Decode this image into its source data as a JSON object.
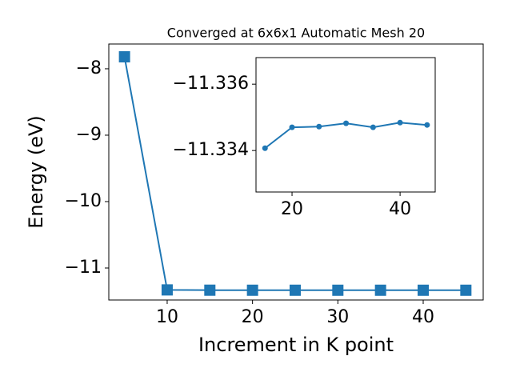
{
  "chart_data": [
    {
      "type": "line",
      "title": "Converged at 6x6x1 Automatic Mesh 20",
      "x_label": "Increment in K point",
      "y_label": "Energy (eV)",
      "x": [
        5,
        10,
        15,
        20,
        25,
        30,
        35,
        40,
        45
      ],
      "series": [
        {
          "color": "#1f77b4",
          "marker": "square",
          "values": [
            -7.82,
            -11.33,
            -11.33407,
            -11.3347,
            -11.33472,
            -11.33482,
            -11.3347,
            -11.33484,
            -11.33477
          ]
        }
      ],
      "xlim": [
        3.16,
        47.03
      ],
      "xticks": [
        10,
        20,
        30,
        40
      ],
      "ylim": [
        -11.482,
        -7.627
      ],
      "yticks": [
        {
          "value": -11,
          "label": "−11"
        },
        {
          "value": -10,
          "label": "−10"
        },
        {
          "value": -9,
          "label": "−9"
        },
        {
          "value": -8,
          "label": "−8"
        }
      ]
    },
    {
      "type": "line",
      "x": [
        15,
        20,
        25,
        30,
        35,
        40,
        45
      ],
      "series": [
        {
          "color": "#1f77b4",
          "marker": "circle",
          "values": [
            -11.33407,
            -11.3347,
            -11.33472,
            -11.33482,
            -11.3347,
            -11.33484,
            -11.33477
          ]
        }
      ],
      "xlim": [
        13.33,
        46.5
      ],
      "xticks": [
        20,
        40
      ],
      "ylim": [
        -11.33275,
        -11.3368
      ],
      "yticks": [
        {
          "value": -11.334,
          "label": "−11.334"
        },
        {
          "value": -11.336,
          "label": "−11.336"
        }
      ]
    }
  ]
}
